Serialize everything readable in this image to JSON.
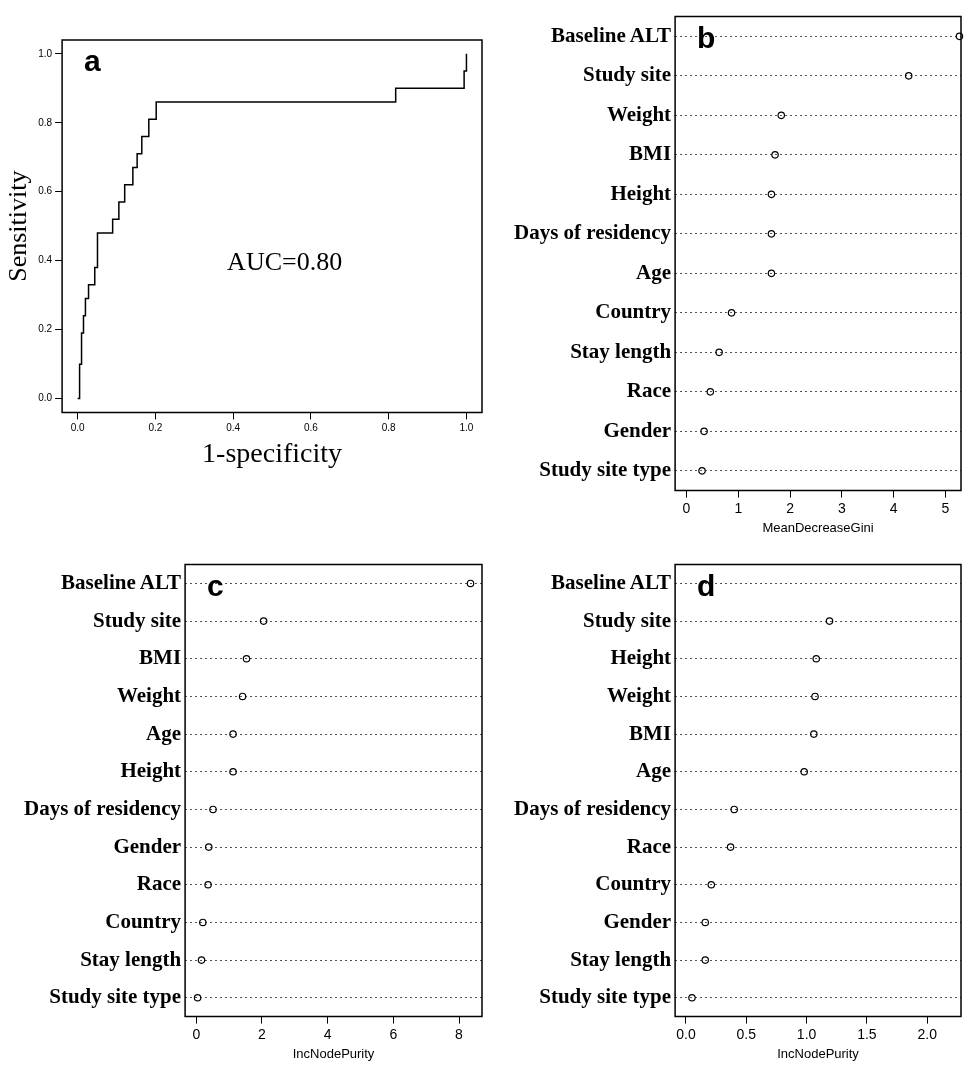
{
  "chart_data": [
    {
      "type": "step",
      "xlabel": "1-specificity",
      "ylabel": "Sensitivity",
      "color": "#000000",
      "x": [
        0,
        0.005,
        0.01,
        0.015,
        0.02,
        0.028,
        0.044,
        0.051,
        0.09,
        0.106,
        0.121,
        0.142,
        0.153,
        0.165,
        0.183,
        0.202,
        0.818,
        0.994,
        1.0
      ],
      "values": [
        0,
        0.1,
        0.19,
        0.24,
        0.29,
        0.33,
        0.38,
        0.48,
        0.52,
        0.57,
        0.62,
        0.67,
        0.71,
        0.76,
        0.81,
        0.86,
        0.9,
        0.95,
        1.0
      ],
      "xlim": [
        -0.04,
        1.04
      ],
      "ylim": [
        -0.04,
        1.04
      ],
      "xticks": [
        {
          "value": 0,
          "label": "0.0"
        },
        0.2,
        0.4,
        0.6,
        0.8,
        {
          "value": 1,
          "label": "1.0"
        }
      ],
      "yticks": [
        {
          "value": 0,
          "label": "0.0"
        },
        0.2,
        0.4,
        0.6,
        0.8,
        {
          "value": 1,
          "label": "1.0"
        }
      ],
      "annotations": [
        "a",
        "AUC=0.80"
      ]
    },
    {
      "type": "scatter",
      "orientation": "horizontal",
      "xlabel": "MeanDecreaseGini",
      "color": "#000000",
      "marker": "circle",
      "grid": "y",
      "categories": [
        "Baseline ALT",
        "Study site",
        "Weight",
        "BMI",
        "Height",
        "Days of residency",
        "Age",
        "Country",
        "Stay length",
        "Race",
        "Gender",
        "Study site type"
      ],
      "values": [
        5.27,
        4.29,
        1.83,
        1.71,
        1.64,
        1.64,
        1.64,
        0.87,
        0.63,
        0.46,
        0.34,
        0.3
      ],
      "xlim": [
        -0.22,
        5.3
      ],
      "xticks": [
        0,
        1,
        2,
        3,
        4,
        5
      ],
      "annotations": [
        "b"
      ]
    },
    {
      "type": "scatter",
      "orientation": "horizontal",
      "xlabel": "IncNodePurity",
      "color": "#000000",
      "marker": "circle",
      "grid": "y",
      "categories": [
        "Baseline ALT",
        "Study site",
        "BMI",
        "Weight",
        "Age",
        "Height",
        "Days of residency",
        "Gender",
        "Race",
        "Country",
        "Stay length",
        "Study site type"
      ],
      "values": [
        8.35,
        2.05,
        1.53,
        1.41,
        1.12,
        1.12,
        0.51,
        0.38,
        0.36,
        0.2,
        0.16,
        0.04
      ],
      "xlim": [
        -0.34,
        8.7
      ],
      "xticks": [
        0,
        2,
        4,
        6,
        8
      ],
      "annotations": [
        "c"
      ]
    },
    {
      "type": "scatter",
      "orientation": "horizontal",
      "xlabel": "IncNodePurity",
      "color": "#000000",
      "marker": "circle",
      "grid": "y",
      "categories": [
        "Baseline ALT",
        "Study site",
        "Height",
        "Weight",
        "BMI",
        "Age",
        "Days of residency",
        "Race",
        "Country",
        "Gender",
        "Stay length",
        "Study site type"
      ],
      "values": [
        null,
        1.19,
        1.08,
        1.07,
        1.06,
        0.98,
        0.4,
        0.37,
        0.21,
        0.16,
        0.16,
        0.05
      ],
      "xlim": [
        -0.09,
        2.28
      ],
      "xticks": [
        {
          "value": 0,
          "label": "0.0"
        },
        0.5,
        {
          "value": 1,
          "label": "1.0"
        },
        1.5,
        {
          "value": 2,
          "label": "2.0"
        }
      ],
      "annotations": [
        "d"
      ]
    }
  ]
}
